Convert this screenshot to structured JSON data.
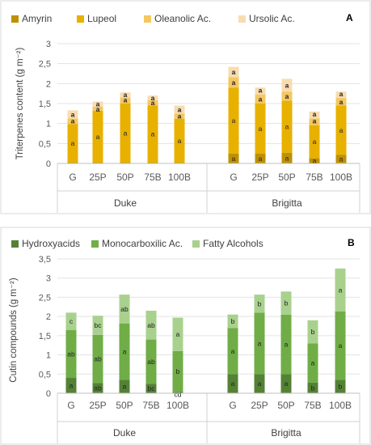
{
  "chart_data": [
    {
      "type": "bar",
      "stacked": true,
      "panel": "A",
      "ylabel": "Triterpenes content (g m⁻²)",
      "ylim": [
        0,
        3
      ],
      "yticks": [
        "0",
        "0,5",
        "1",
        "1,5",
        "2",
        "2,5",
        "3"
      ],
      "ytick_values": [
        0,
        0.5,
        1,
        1.5,
        2,
        2.5,
        3
      ],
      "grid": true,
      "legend_position": "top",
      "groups": [
        {
          "label": "Duke",
          "categories": [
            "G",
            "25P",
            "50P",
            "75B",
            "100B"
          ]
        },
        {
          "label": "Brigitta",
          "categories": [
            "G",
            "25P",
            "50P",
            "75B",
            "100B"
          ]
        }
      ],
      "series": [
        {
          "name": "Amyrin",
          "color": "#bf9000",
          "values": [
            0.02,
            0.02,
            0.02,
            0.02,
            0.02,
            0.25,
            0.25,
            0.27,
            0.13,
            0.22
          ],
          "letters": [
            "",
            "",
            "",
            "",
            "",
            "a",
            "a",
            "a",
            "a",
            "a"
          ]
        },
        {
          "name": "Lupeol",
          "color": "#e8b100",
          "values": [
            0.97,
            1.3,
            1.48,
            1.43,
            1.1,
            1.65,
            1.25,
            1.3,
            0.83,
            1.23
          ],
          "letters": [
            "a",
            "a",
            "a",
            "a",
            "a",
            "a",
            "a",
            "a",
            "a",
            "a"
          ]
        },
        {
          "name": "Oleanolic Ac.",
          "color": "#f4c860",
          "values": [
            0.14,
            0.1,
            0.15,
            0.13,
            0.13,
            0.26,
            0.23,
            0.23,
            0.17,
            0.19
          ],
          "letters": [
            "a",
            "a",
            "a",
            "a",
            "a",
            "a",
            "a",
            "a",
            "a",
            "a"
          ]
        },
        {
          "name": "Ursolic Ac.",
          "color": "#f8dcb0",
          "values": [
            0.2,
            0.13,
            0.13,
            0.12,
            0.2,
            0.26,
            0.17,
            0.32,
            0.17,
            0.16
          ],
          "letters": [
            "a",
            "a",
            "a",
            "a",
            "a",
            "a",
            "a",
            "a",
            "a",
            "a"
          ]
        }
      ],
      "top_letters_bold": true
    },
    {
      "type": "bar",
      "stacked": true,
      "panel": "B",
      "ylabel": "Cutin compounds (g m⁻²)",
      "ylim": [
        0,
        3.5
      ],
      "yticks": [
        "0",
        "0,5",
        "1",
        "1,5",
        "2",
        "2,5",
        "3",
        "3,5"
      ],
      "ytick_values": [
        0,
        0.5,
        1,
        1.5,
        2,
        2.5,
        3,
        3.5
      ],
      "grid": true,
      "legend_position": "top",
      "groups": [
        {
          "label": "Duke",
          "categories": [
            "G",
            "25P",
            "50P",
            "75B",
            "100B"
          ]
        },
        {
          "label": "Brigitta",
          "categories": [
            "G",
            "25P",
            "50P",
            "75B",
            "100B"
          ]
        }
      ],
      "series": [
        {
          "name": "Hydroxyacids",
          "color": "#548235",
          "values": [
            0.4,
            0.27,
            0.35,
            0.25,
            0.03,
            0.5,
            0.5,
            0.5,
            0.28,
            0.35
          ],
          "letters": [
            "a",
            "ab",
            "a",
            "bc",
            "cd",
            "a",
            "a",
            "a",
            "b",
            "b"
          ]
        },
        {
          "name": "Monocarboxilic Ac.",
          "color": "#70ad47",
          "values": [
            1.25,
            1.25,
            1.47,
            1.15,
            1.07,
            1.2,
            1.6,
            1.55,
            1.02,
            1.78
          ],
          "letters": [
            "ab",
            "ab",
            "a",
            "ab",
            "b",
            "a",
            "a",
            "a",
            "a",
            "a"
          ]
        },
        {
          "name": "Fatty Alcohols",
          "color": "#a9d18e",
          "values": [
            0.45,
            0.5,
            0.75,
            0.75,
            0.87,
            0.35,
            0.47,
            0.6,
            0.6,
            1.12
          ],
          "letters": [
            "c",
            "bc",
            "ab",
            "ab",
            "a",
            "b",
            "b",
            "b",
            "b",
            "a"
          ]
        }
      ],
      "top_letters_bold": false
    }
  ]
}
